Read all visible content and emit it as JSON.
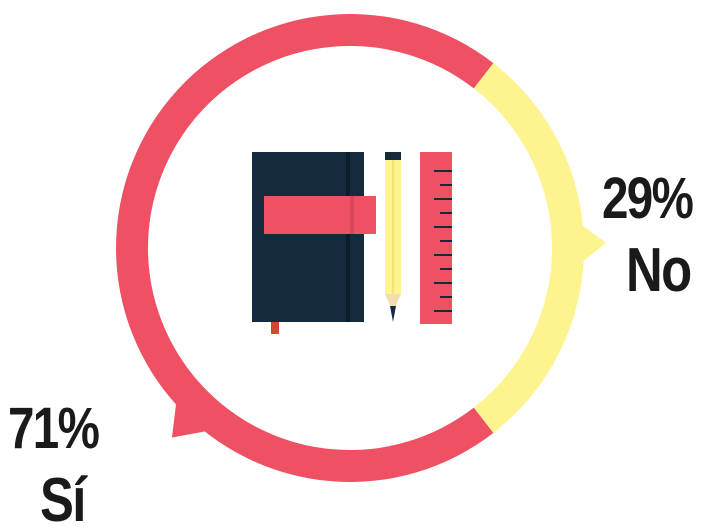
{
  "chart_data": {
    "type": "pie",
    "style": "donut",
    "slices": [
      {
        "label": "Sí",
        "value": 71,
        "value_label": "71%",
        "color": "#ef5164"
      },
      {
        "label": "No",
        "value": 29,
        "value_label": "29%",
        "color": "#fdf38f"
      }
    ]
  },
  "center_icon": "notebook-pencil-ruler-icon",
  "colors": {
    "text": "#1a1a1a",
    "notebook": "#142b3d",
    "band": "#ef5164",
    "pencil": "#fdf38f",
    "ruler": "#ef5164",
    "bookmark": "#d6452d"
  }
}
